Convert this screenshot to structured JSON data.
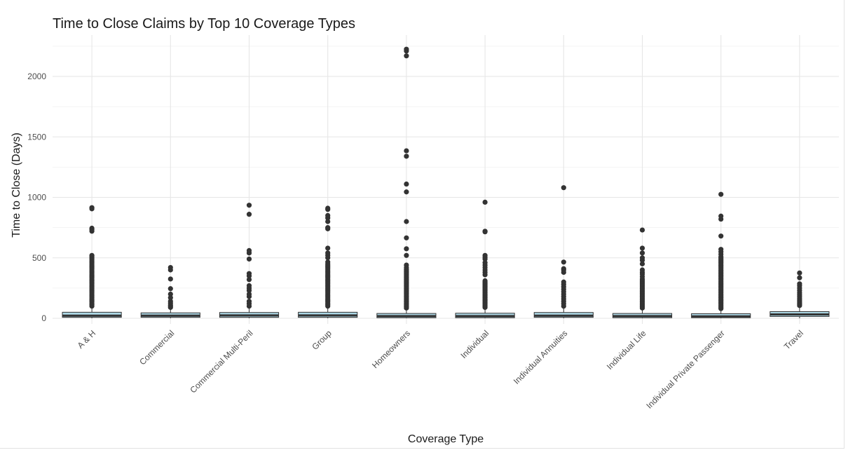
{
  "chart_data": {
    "type": "boxplot",
    "title": "Time to Close Claims by Top 10 Coverage Types",
    "xlabel": "Coverage Type",
    "ylabel": "Time to Close (Days)",
    "ylim": [
      -40,
      2290
    ],
    "yticks": [
      0,
      500,
      1000,
      1500,
      2000
    ],
    "grid": true,
    "legend": "none",
    "colors": {
      "box_fill": "#add8e6",
      "box_line": "#333333",
      "outlier": "#333333",
      "grid": "#e6e6e6"
    },
    "categories": [
      "A & H",
      "Commercial",
      "Commercial Multi-Peril",
      "Group",
      "Homeowners",
      "Individual",
      "Individual Annuities",
      "Individual Life",
      "Individual Private Passenger",
      "Travel"
    ],
    "series": [
      {
        "category": "A & H",
        "q1": 8,
        "median": 22,
        "q3": 50,
        "whisker_low": 0,
        "whisker_high": 90,
        "outliers": [
          100,
          112,
          125,
          138,
          150,
          162,
          175,
          188,
          200,
          212,
          225,
          238,
          250,
          262,
          275,
          288,
          300,
          312,
          325,
          338,
          350,
          362,
          375,
          388,
          400,
          412,
          425,
          438,
          450,
          462,
          475,
          488,
          500,
          512,
          520,
          720,
          735,
          745,
          905,
          915
        ]
      },
      {
        "category": "Commercial",
        "q1": 8,
        "median": 22,
        "q3": 45,
        "whisker_low": 0,
        "whisker_high": 80,
        "outliers": [
          90,
          100,
          110,
          125,
          140,
          170,
          200,
          245,
          325,
          400,
          420
        ]
      },
      {
        "category": "Commercial Multi-Peril",
        "q1": 8,
        "median": 24,
        "q3": 48,
        "whisker_low": 0,
        "whisker_high": 90,
        "outliers": [
          100,
          120,
          140,
          180,
          200,
          230,
          250,
          270,
          320,
          350,
          370,
          490,
          540,
          560,
          860,
          935
        ]
      },
      {
        "category": "Group",
        "q1": 8,
        "median": 24,
        "q3": 50,
        "whisker_low": 0,
        "whisker_high": 90,
        "outliers": [
          100,
          112,
          125,
          138,
          150,
          162,
          175,
          188,
          200,
          212,
          225,
          238,
          250,
          262,
          275,
          288,
          300,
          312,
          325,
          338,
          350,
          362,
          375,
          388,
          400,
          412,
          425,
          438,
          450,
          465,
          500,
          520,
          540,
          580,
          740,
          750,
          800,
          830,
          850,
          900,
          910
        ]
      },
      {
        "category": "Homeowners",
        "q1": 5,
        "median": 18,
        "q3": 40,
        "whisker_low": 0,
        "whisker_high": 75,
        "outliers": [
          85,
          95,
          105,
          115,
          125,
          135,
          145,
          155,
          165,
          175,
          185,
          195,
          205,
          215,
          225,
          235,
          245,
          255,
          265,
          275,
          285,
          295,
          305,
          315,
          325,
          335,
          345,
          355,
          365,
          375,
          385,
          395,
          405,
          420,
          440,
          520,
          575,
          665,
          800,
          1045,
          1110,
          1340,
          1385,
          2170,
          2210,
          2225
        ]
      },
      {
        "category": "Individual",
        "q1": 5,
        "median": 18,
        "q3": 42,
        "whisker_low": 0,
        "whisker_high": 80,
        "outliers": [
          90,
          100,
          110,
          120,
          130,
          140,
          150,
          160,
          170,
          180,
          190,
          200,
          210,
          220,
          230,
          240,
          250,
          260,
          270,
          280,
          290,
          300,
          310,
          360,
          380,
          400,
          420,
          440,
          460,
          490,
          505,
          520,
          715,
          720,
          960
        ]
      },
      {
        "category": "Individual Annuities",
        "q1": 8,
        "median": 22,
        "q3": 48,
        "whisker_low": 0,
        "whisker_high": 85,
        "outliers": [
          100,
          120,
          140,
          160,
          180,
          200,
          220,
          240,
          260,
          280,
          300,
          380,
          400,
          410,
          465,
          1080
        ]
      },
      {
        "category": "Individual Life",
        "q1": 5,
        "median": 18,
        "q3": 40,
        "whisker_low": 0,
        "whisker_high": 75,
        "outliers": [
          85,
          95,
          105,
          115,
          125,
          135,
          145,
          155,
          165,
          175,
          185,
          195,
          205,
          215,
          225,
          235,
          245,
          255,
          265,
          275,
          285,
          295,
          305,
          315,
          325,
          345,
          365,
          380,
          400,
          450,
          480,
          500,
          540,
          580,
          730
        ]
      },
      {
        "category": "Individual Private Passenger",
        "q1": 5,
        "median": 16,
        "q3": 38,
        "whisker_low": 0,
        "whisker_high": 70,
        "outliers": [
          80,
          90,
          100,
          110,
          120,
          130,
          140,
          150,
          160,
          170,
          180,
          190,
          200,
          210,
          220,
          230,
          240,
          250,
          260,
          270,
          280,
          290,
          300,
          310,
          320,
          330,
          340,
          350,
          360,
          370,
          380,
          390,
          400,
          410,
          420,
          430,
          440,
          450,
          460,
          470,
          480,
          490,
          500,
          510,
          530,
          550,
          570,
          680,
          820,
          845,
          1025
        ]
      },
      {
        "category": "Travel",
        "q1": 15,
        "median": 32,
        "q3": 55,
        "whisker_low": 0,
        "whisker_high": 95,
        "outliers": [
          105,
          115,
          125,
          135,
          150,
          165,
          180,
          195,
          210,
          230,
          250,
          270,
          285,
          335,
          375
        ]
      }
    ]
  }
}
